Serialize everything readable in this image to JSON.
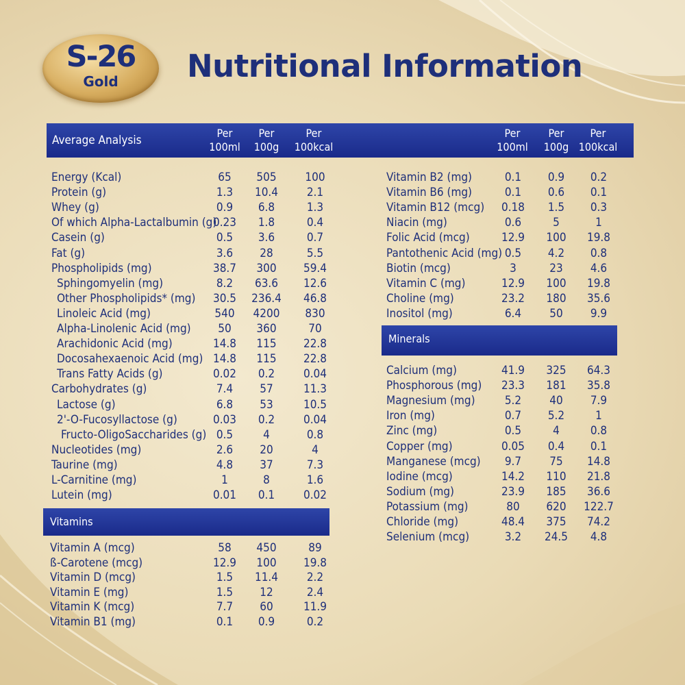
{
  "brand": {
    "name": "S-26",
    "trademark": "®",
    "subname": "Gold"
  },
  "title": "Nutritional Information",
  "header": {
    "label": "Average Analysis",
    "col1": "Per\n100ml",
    "col2": "Per\n100g",
    "col3": "Per\n100kcal"
  },
  "left_rows": [
    {
      "name": "Energy (Kcal)",
      "v1": "65",
      "v2": "505",
      "v3": "100"
    },
    {
      "name": "Protein (g)",
      "v1": "1.3",
      "v2": "10.4",
      "v3": "2.1"
    },
    {
      "name": "Whey (g)",
      "v1": "0.9",
      "v2": "6.8",
      "v3": "1.3"
    },
    {
      "name": "Of which Alpha-Lactalbumin (g)",
      "v1": "0.23",
      "v2": "1.8",
      "v3": "0.4"
    },
    {
      "name": "Casein (g)",
      "v1": "0.5",
      "v2": "3.6",
      "v3": "0.7"
    },
    {
      "name": "Fat (g)",
      "v1": "3.6",
      "v2": "28",
      "v3": "5.5"
    },
    {
      "name": "Phospholipids (mg)",
      "v1": "38.7",
      "v2": "300",
      "v3": "59.4"
    },
    {
      "name": "Sphingomyelin (mg)",
      "v1": "8.2",
      "v2": "63.6",
      "v3": "12.6"
    },
    {
      "name": "Other Phospholipids* (mg)",
      "v1": "30.5",
      "v2": "236.4",
      "v3": "46.8"
    },
    {
      "name": "Linoleic Acid (mg)",
      "v1": "540",
      "v2": "4200",
      "v3": "830"
    },
    {
      "name": "Alpha-Linolenic Acid (mg)",
      "v1": "50",
      "v2": "360",
      "v3": "70"
    },
    {
      "name": "Arachidonic Acid (mg)",
      "v1": "14.8",
      "v2": "115",
      "v3": "22.8"
    },
    {
      "name": "Docosahexaenoic Acid (mg)",
      "v1": "14.8",
      "v2": "115",
      "v3": "22.8"
    },
    {
      "name": "Trans Fatty Acids (g)",
      "v1": "0.02",
      "v2": "0.2",
      "v3": "0.04"
    },
    {
      "name": "Carbohydrates (g)",
      "v1": "7.4",
      "v2": "57",
      "v3": "11.3"
    },
    {
      "name": "Lactose (g)",
      "v1": "6.8",
      "v2": "53",
      "v3": "10.5"
    },
    {
      "name": "2'-O-Fucosyllactose (g)",
      "v1": "0.03",
      "v2": "0.2",
      "v3": "0.04"
    },
    {
      "name": "Fructo-OligoSaccharides (g)",
      "v1": "0.5",
      "v2": "4",
      "v3": "0.8"
    },
    {
      "name": "Nucleotides (mg)",
      "v1": "2.6",
      "v2": "20",
      "v3": "4"
    },
    {
      "name": "Taurine (mg)",
      "v1": "4.8",
      "v2": "37",
      "v3": "7.3"
    },
    {
      "name": "L-Carnitine (mg)",
      "v1": "1",
      "v2": "8",
      "v3": "1.6"
    },
    {
      "name": "Lutein (mg)",
      "v1": "0.01",
      "v2": "0.1",
      "v3": "0.02"
    }
  ],
  "vitamins_label": "Vitamins",
  "vitamin_rows": [
    {
      "name": "Vitamin A (mcg)",
      "v1": "58",
      "v2": "450",
      "v3": "89"
    },
    {
      "name": "ß-Carotene (mcg)",
      "v1": "12.9",
      "v2": "100",
      "v3": "19.8"
    },
    {
      "name": "Vitamin D (mcg)",
      "v1": "1.5",
      "v2": "11.4",
      "v3": "2.2"
    },
    {
      "name": "Vitamin E (mg)",
      "v1": "1.5",
      "v2": "12",
      "v3": "2.4"
    },
    {
      "name": "Vitamin K (mcg)",
      "v1": "7.7",
      "v2": "60",
      "v3": "11.9"
    },
    {
      "name": "Vitamin B1 (mg)",
      "v1": "0.1",
      "v2": "0.9",
      "v3": "0.2"
    }
  ],
  "right_rows": [
    {
      "name": "Vitamin B2 (mg)",
      "v1": "0.1",
      "v2": "0.9",
      "v3": "0.2"
    },
    {
      "name": "Vitamin B6 (mg)",
      "v1": "0.1",
      "v2": "0.6",
      "v3": "0.1"
    },
    {
      "name": "Vitamin B12 (mcg)",
      "v1": "0.18",
      "v2": "1.5",
      "v3": "0.3"
    },
    {
      "name": "Niacin (mg)",
      "v1": "0.6",
      "v2": "5",
      "v3": "1"
    },
    {
      "name": "Folic Acid (mcg)",
      "v1": "12.9",
      "v2": "100",
      "v3": "19.8"
    },
    {
      "name": "Pantothenic Acid (mg)",
      "v1": "0.5",
      "v2": "4.2",
      "v3": "0.8"
    },
    {
      "name": "Biotin (mcg)",
      "v1": "3",
      "v2": "23",
      "v3": "4.6"
    },
    {
      "name": "Vitamin C (mg)",
      "v1": "12.9",
      "v2": "100",
      "v3": "19.8"
    },
    {
      "name": "Choline (mg)",
      "v1": "23.2",
      "v2": "180",
      "v3": "35.6"
    },
    {
      "name": "Inositol (mg)",
      "v1": "6.4",
      "v2": "50",
      "v3": "9.9"
    }
  ],
  "minerals_label": "Minerals",
  "mineral_rows": [
    {
      "name": "Calcium (mg)",
      "v1": "41.9",
      "v2": "325",
      "v3": "64.3"
    },
    {
      "name": "Phosphorous (mg)",
      "v1": "23.3",
      "v2": "181",
      "v3": "35.8"
    },
    {
      "name": "Magnesium (mg)",
      "v1": "5.2",
      "v2": "40",
      "v3": "7.9"
    },
    {
      "name": "Iron (mg)",
      "v1": "0.7",
      "v2": "5.2",
      "v3": "1"
    },
    {
      "name": "Zinc (mg)",
      "v1": "0.5",
      "v2": "4",
      "v3": "0.8"
    },
    {
      "name": "Copper (mg)",
      "v1": "0.05",
      "v2": "0.4",
      "v3": "0.1"
    },
    {
      "name": "Manganese (mcg)",
      "v1": "9.7",
      "v2": "75",
      "v3": "14.8"
    },
    {
      "name": "Iodine (mcg)",
      "v1": "14.2",
      "v2": "110",
      "v3": "21.8"
    },
    {
      "name": "Sodium (mg)",
      "v1": "23.9",
      "v2": "185",
      "v3": "36.6"
    },
    {
      "name": "Potassium (mg)",
      "v1": "80",
      "v2": "620",
      "v3": "122.7"
    },
    {
      "name": "Chloride (mg)",
      "v1": "48.4",
      "v2": "375",
      "v3": "74.2"
    },
    {
      "name": "Selenium (mcg)",
      "v1": "3.2",
      "v2": "24.5",
      "v3": "4.8"
    }
  ],
  "colors": {
    "navy": "#1e2f7a",
    "header_blue": "#1a2a8a",
    "gold": "#d7ad5f",
    "cream": "#f3e9cf"
  }
}
